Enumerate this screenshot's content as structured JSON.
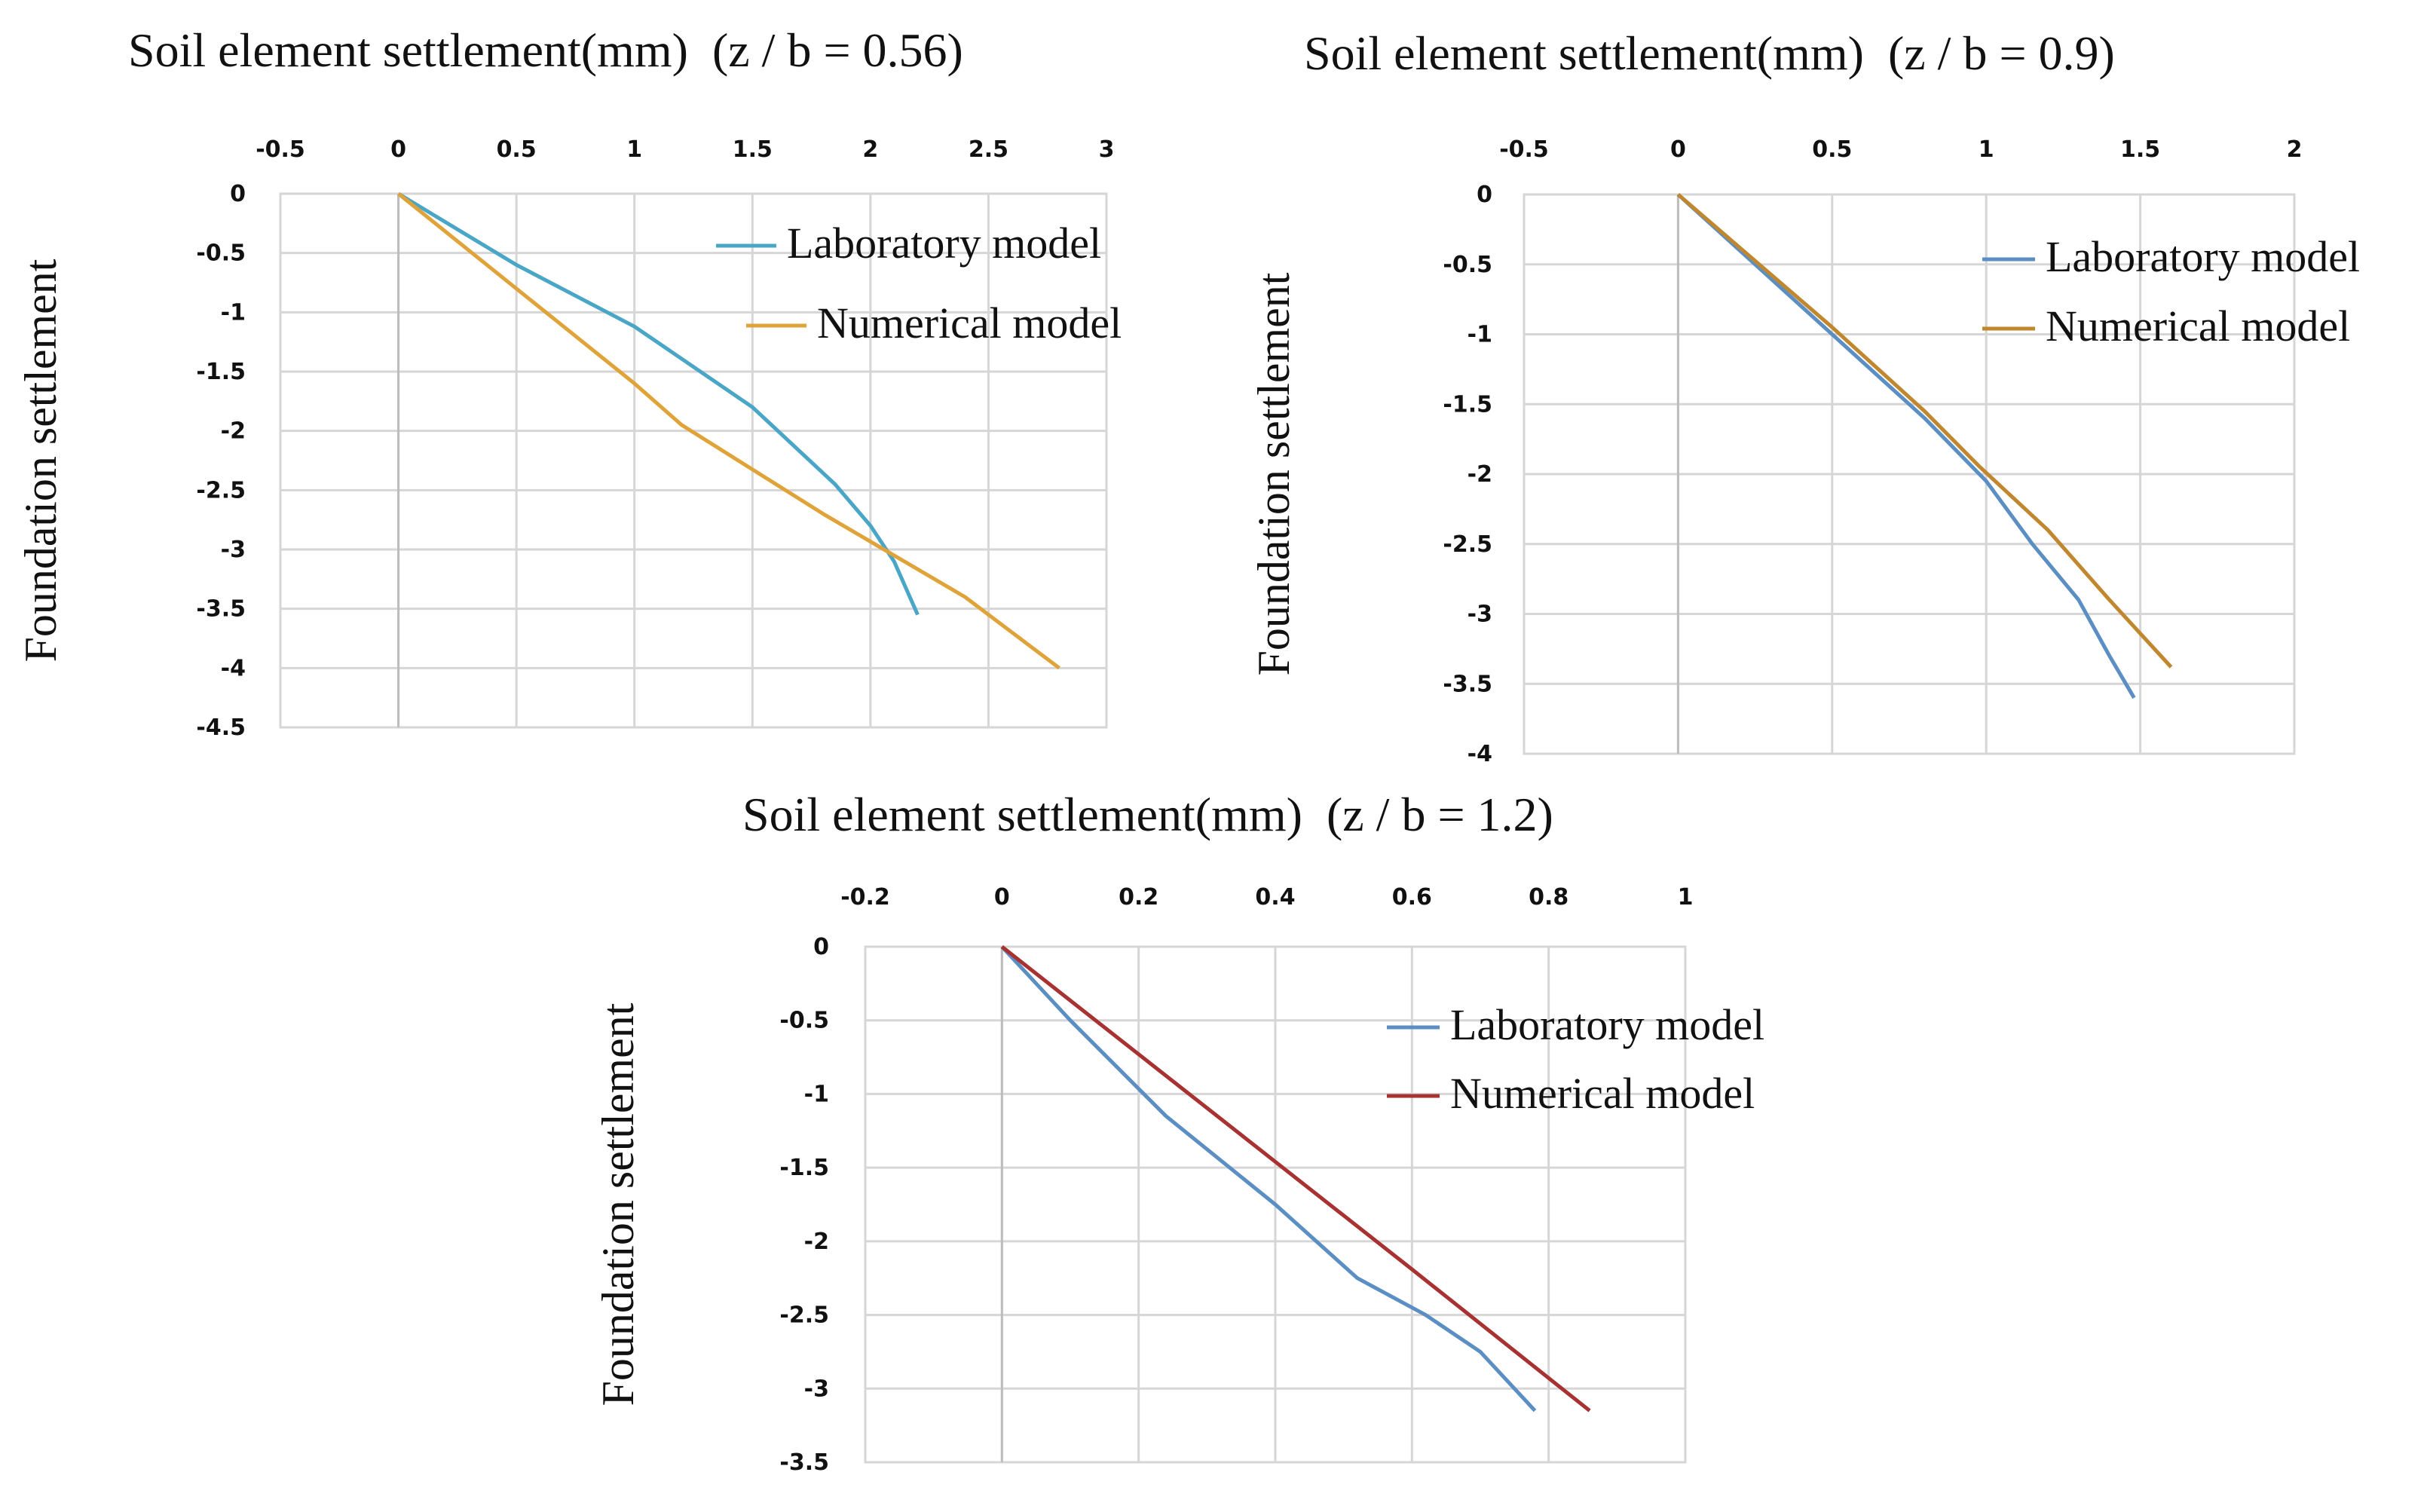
{
  "chart_data": [
    {
      "type": "line",
      "title": "Soil element settlement(mm)  (z / b = 0.56)",
      "xlabel": "",
      "ylabel": "Foundation settlement",
      "xlim": [
        -0.5,
        3
      ],
      "ylim": [
        -4.5,
        0
      ],
      "x_ticks": [
        "-0.5",
        "0",
        "0.5",
        "1",
        "1.5",
        "2",
        "2.5",
        "3"
      ],
      "y_ticks": [
        "0",
        "-0.5",
        "-1",
        "-1.5",
        "-2",
        "-2.5",
        "-3",
        "-3.5",
        "-4",
        "-4.5"
      ],
      "x_axis_position": "top",
      "grid": true,
      "legend_position": "top-right",
      "series": [
        {
          "name": "Laboratory model",
          "color": "#4aa6c6",
          "x": [
            0,
            0.5,
            1.0,
            1.5,
            1.85,
            2.0,
            2.1,
            2.2
          ],
          "y": [
            0,
            -0.6,
            -1.12,
            -1.8,
            -2.45,
            -2.8,
            -3.1,
            -3.55
          ]
        },
        {
          "name": "Numerical model",
          "color": "#e0a33a",
          "x": [
            0,
            0.5,
            1.0,
            1.2,
            1.8,
            2.4,
            2.8
          ],
          "y": [
            0,
            -0.8,
            -1.6,
            -1.95,
            -2.7,
            -3.4,
            -4.0
          ]
        }
      ]
    },
    {
      "type": "line",
      "title": "Soil element settlement(mm)  (z / b = 0.9)",
      "xlabel": "",
      "ylabel": "Foundation settlement",
      "xlim": [
        -0.5,
        2
      ],
      "ylim": [
        -4,
        0
      ],
      "x_ticks": [
        "-0.5",
        "0",
        "0.5",
        "1",
        "1.5",
        "2"
      ],
      "y_ticks": [
        "0",
        "-0.5",
        "-1",
        "-1.5",
        "-2",
        "-2.5",
        "-3",
        "-3.5",
        "-4"
      ],
      "x_axis_position": "top",
      "grid": true,
      "legend_position": "right",
      "series": [
        {
          "name": "Laboratory model",
          "color": "#5b8fc4",
          "x": [
            0,
            0.4,
            0.8,
            1.0,
            1.15,
            1.3,
            1.4,
            1.48
          ],
          "y": [
            0,
            -0.8,
            -1.6,
            -2.05,
            -2.5,
            -2.9,
            -3.3,
            -3.6
          ]
        },
        {
          "name": "Numerical model",
          "color": "#c1872e",
          "x": [
            0,
            0.5,
            0.8,
            0.98,
            1.2,
            1.4,
            1.6
          ],
          "y": [
            0,
            -0.95,
            -1.55,
            -1.95,
            -2.4,
            -2.9,
            -3.38
          ]
        }
      ]
    },
    {
      "type": "line",
      "title": "Soil element settlement(mm)  (z / b = 1.2)",
      "xlabel": "",
      "ylabel": "Foundation settlement",
      "xlim": [
        -0.2,
        1
      ],
      "ylim": [
        -3.5,
        0
      ],
      "x_ticks": [
        "-0.2",
        "0",
        "0.2",
        "0.4",
        "0.6",
        "0.8",
        "1"
      ],
      "y_ticks": [
        "0",
        "-0.5",
        "-1",
        "-1.5",
        "-2",
        "-2.5",
        "-3",
        "-3.5"
      ],
      "x_axis_position": "top",
      "grid": true,
      "legend_position": "right",
      "series": [
        {
          "name": "Laboratory model",
          "color": "#5b8fc4",
          "x": [
            0,
            0.1,
            0.24,
            0.4,
            0.52,
            0.62,
            0.7,
            0.78
          ],
          "y": [
            0,
            -0.5,
            -1.15,
            -1.75,
            -2.25,
            -2.5,
            -2.75,
            -3.15
          ]
        },
        {
          "name": "Numerical model",
          "color": "#a83232",
          "x": [
            0,
            0.2,
            0.4,
            0.6,
            0.86
          ],
          "y": [
            0,
            -0.73,
            -1.46,
            -2.19,
            -3.15
          ]
        }
      ]
    }
  ]
}
